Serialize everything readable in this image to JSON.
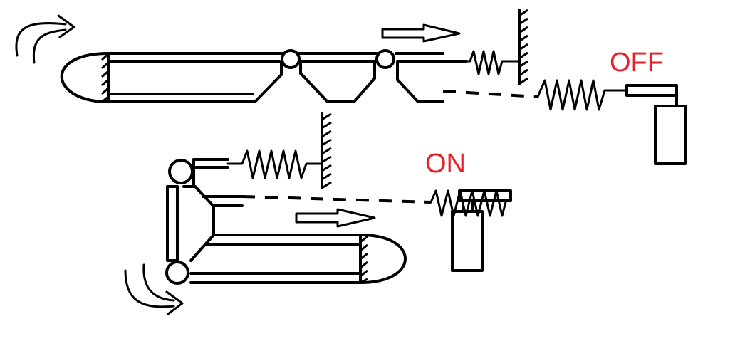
{
  "labels": {
    "off": "OFF",
    "on": "ON"
  },
  "colors": {
    "label": "#e8202a",
    "line": "#000000",
    "background": "#ffffff"
  }
}
